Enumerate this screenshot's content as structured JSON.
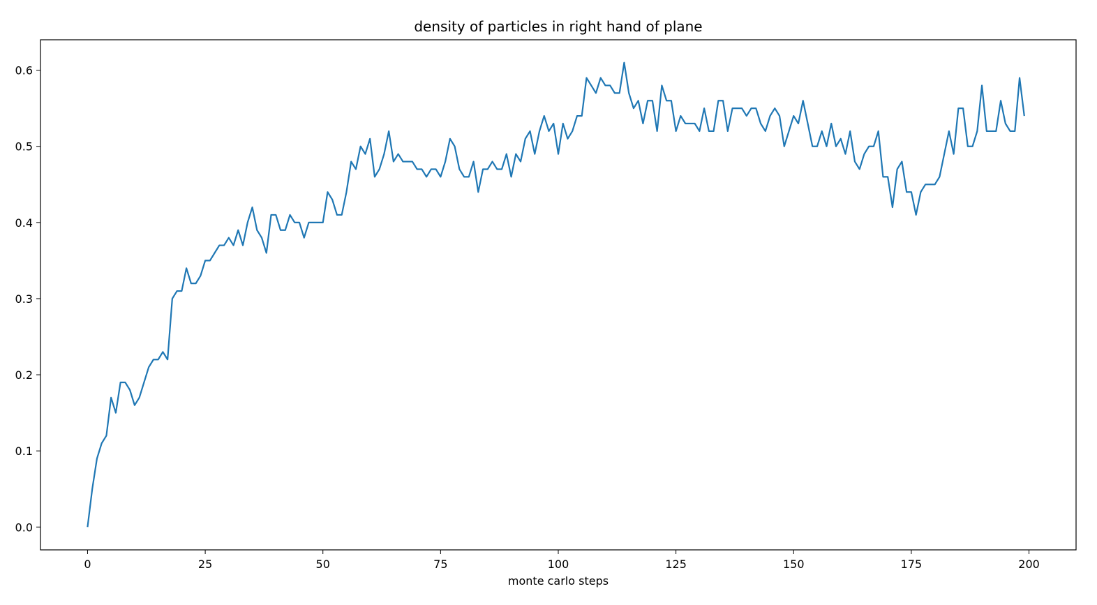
{
  "chart_data": {
    "type": "line",
    "title": "density of particles in right hand of plane",
    "xlabel": "monte carlo steps",
    "ylabel": "",
    "xlim": [
      -10,
      210
    ],
    "ylim": [
      -0.03,
      0.64
    ],
    "xticks": [
      0,
      25,
      50,
      75,
      100,
      125,
      150,
      175,
      200
    ],
    "yticks": [
      0.0,
      0.1,
      0.2,
      0.3,
      0.4,
      0.5,
      0.6
    ],
    "ytick_labels": [
      "0.0",
      "0.1",
      "0.2",
      "0.3",
      "0.4",
      "0.5",
      "0.6"
    ],
    "grid": false,
    "legend": "none",
    "series": [
      {
        "color": "#1f77b4",
        "values": [
          0.0,
          0.05,
          0.09,
          0.11,
          0.12,
          0.17,
          0.15,
          0.19,
          0.19,
          0.18,
          0.16,
          0.17,
          0.19,
          0.21,
          0.22,
          0.22,
          0.23,
          0.22,
          0.3,
          0.31,
          0.31,
          0.34,
          0.32,
          0.32,
          0.33,
          0.35,
          0.35,
          0.36,
          0.37,
          0.37,
          0.38,
          0.37,
          0.39,
          0.37,
          0.4,
          0.42,
          0.39,
          0.38,
          0.36,
          0.41,
          0.41,
          0.39,
          0.39,
          0.41,
          0.4,
          0.4,
          0.38,
          0.4,
          0.4,
          0.4,
          0.4,
          0.44,
          0.43,
          0.41,
          0.41,
          0.44,
          0.48,
          0.47,
          0.5,
          0.49,
          0.51,
          0.46,
          0.47,
          0.49,
          0.52,
          0.48,
          0.49,
          0.48,
          0.48,
          0.48,
          0.47,
          0.47,
          0.46,
          0.47,
          0.47,
          0.46,
          0.48,
          0.51,
          0.5,
          0.47,
          0.46,
          0.46,
          0.48,
          0.44,
          0.47,
          0.47,
          0.48,
          0.47,
          0.47,
          0.49,
          0.46,
          0.49,
          0.48,
          0.51,
          0.52,
          0.49,
          0.52,
          0.54,
          0.52,
          0.53,
          0.49,
          0.53,
          0.51,
          0.52,
          0.54,
          0.54,
          0.59,
          0.58,
          0.57,
          0.59,
          0.58,
          0.58,
          0.57,
          0.57,
          0.61,
          0.57,
          0.55,
          0.56,
          0.53,
          0.56,
          0.56,
          0.52,
          0.58,
          0.56,
          0.56,
          0.52,
          0.54,
          0.53,
          0.53,
          0.53,
          0.52,
          0.55,
          0.52,
          0.52,
          0.56,
          0.56,
          0.52,
          0.55,
          0.55,
          0.55,
          0.54,
          0.55,
          0.55,
          0.53,
          0.52,
          0.54,
          0.55,
          0.54,
          0.5,
          0.52,
          0.54,
          0.53,
          0.56,
          0.53,
          0.5,
          0.5,
          0.52,
          0.5,
          0.53,
          0.5,
          0.51,
          0.49,
          0.52,
          0.48,
          0.47,
          0.49,
          0.5,
          0.5,
          0.52,
          0.46,
          0.46,
          0.42,
          0.47,
          0.48,
          0.44,
          0.44,
          0.41,
          0.44,
          0.45,
          0.45,
          0.45,
          0.46,
          0.49,
          0.52,
          0.49,
          0.55,
          0.55,
          0.5,
          0.5,
          0.52,
          0.58,
          0.52,
          0.52,
          0.52,
          0.56,
          0.53,
          0.52,
          0.52,
          0.59,
          0.54
        ]
      }
    ]
  }
}
